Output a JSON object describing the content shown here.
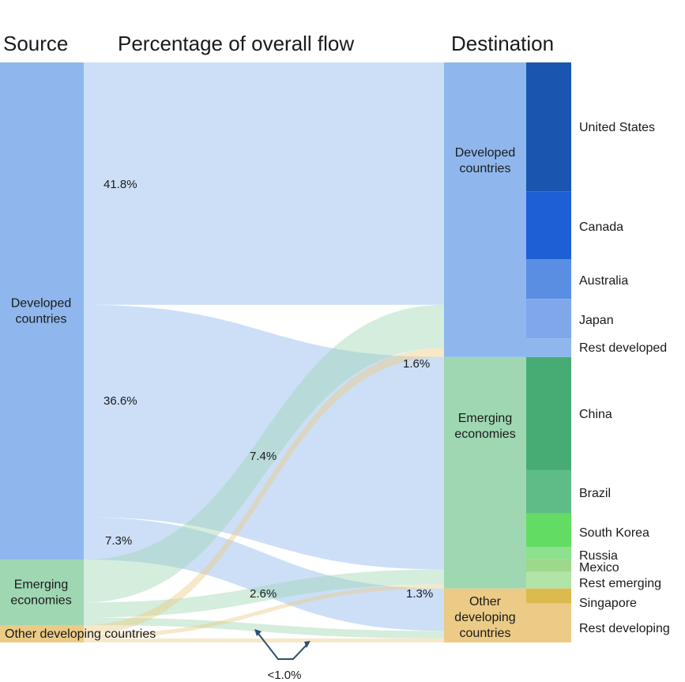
{
  "chart_data": {
    "type": "sankey",
    "headers": {
      "source": "Source",
      "middle": "Percentage of overall flow",
      "destination": "Destination"
    },
    "sources": [
      {
        "id": "dev",
        "label": "Developed countries",
        "lines": [
          "Developed",
          "countries"
        ],
        "color": "#8fb7ee"
      },
      {
        "id": "emg",
        "label": "Emerging economies",
        "lines": [
          "Emerging",
          "economies"
        ],
        "color": "#9fd7b3"
      },
      {
        "id": "oth",
        "label": "Other developing countries",
        "lines": [
          "Other developing countries"
        ],
        "color": "#ebcb85"
      }
    ],
    "destinations": [
      {
        "id": "dev",
        "label": "Developed countries",
        "lines": [
          "Developed",
          "countries"
        ],
        "color": "#8fb7ee"
      },
      {
        "id": "emg",
        "label": "Emerging economies",
        "lines": [
          "Emerging",
          "economies"
        ],
        "color": "#9fd7b3"
      },
      {
        "id": "oth",
        "label": "Other developing countries",
        "lines": [
          "Other",
          "developing",
          "countries"
        ],
        "color": "#ebcb85"
      }
    ],
    "flows": [
      {
        "from": "dev",
        "to": "dev",
        "value": 41.8,
        "label": "41.8%"
      },
      {
        "from": "dev",
        "to": "emg",
        "value": 36.6,
        "label": "36.6%"
      },
      {
        "from": "dev",
        "to": "oth",
        "value": 7.3,
        "label": "7.3%"
      },
      {
        "from": "emg",
        "to": "dev",
        "value": 7.4,
        "label": "7.4%"
      },
      {
        "from": "emg",
        "to": "emg",
        "value": 2.6,
        "label": "2.6%"
      },
      {
        "from": "emg",
        "to": "oth",
        "value": 1.3,
        "label": "1.3%"
      },
      {
        "from": "oth",
        "to": "dev",
        "value": 1.6,
        "label": "1.6%"
      },
      {
        "from": "oth",
        "to": "emg",
        "value": 0.7,
        "label": ""
      },
      {
        "from": "oth",
        "to": "oth",
        "value": 0.7,
        "label": ""
      }
    ],
    "small_flow_note": "<1.0%",
    "countries": [
      {
        "name": "United States",
        "group": "dev",
        "value": 21.5,
        "color": "#1a56b0"
      },
      {
        "name": "Canada",
        "group": "dev",
        "value": 11.3,
        "color": "#1f5fd6"
      },
      {
        "name": "Australia",
        "group": "dev",
        "value": 6.6,
        "color": "#5a8ee3"
      },
      {
        "name": "Japan",
        "group": "dev",
        "value": 6.6,
        "color": "#7fa7ea"
      },
      {
        "name": "Rest developed",
        "group": "dev",
        "value": 3.1,
        "color": "#8fb7ee"
      },
      {
        "name": "China",
        "group": "emg",
        "value": 19.0,
        "color": "#47ab74"
      },
      {
        "name": "Brazil",
        "group": "emg",
        "value": 7.3,
        "color": "#5fbc86"
      },
      {
        "name": "South Korea",
        "group": "emg",
        "value": 5.6,
        "color": "#63dc63"
      },
      {
        "name": "Russia",
        "group": "emg",
        "value": 2.1,
        "color": "#8de08d"
      },
      {
        "name": "Mexico",
        "group": "emg",
        "value": 2.1,
        "color": "#9ed88a"
      },
      {
        "name": "Rest emerging",
        "group": "emg",
        "value": 2.8,
        "color": "#b2e4a8"
      },
      {
        "name": "Singapore",
        "group": "oth",
        "value": 2.4,
        "color": "#dcba4e"
      },
      {
        "name": "Rest developing",
        "group": "oth",
        "value": 6.3,
        "color": "#ebcb85"
      }
    ]
  }
}
